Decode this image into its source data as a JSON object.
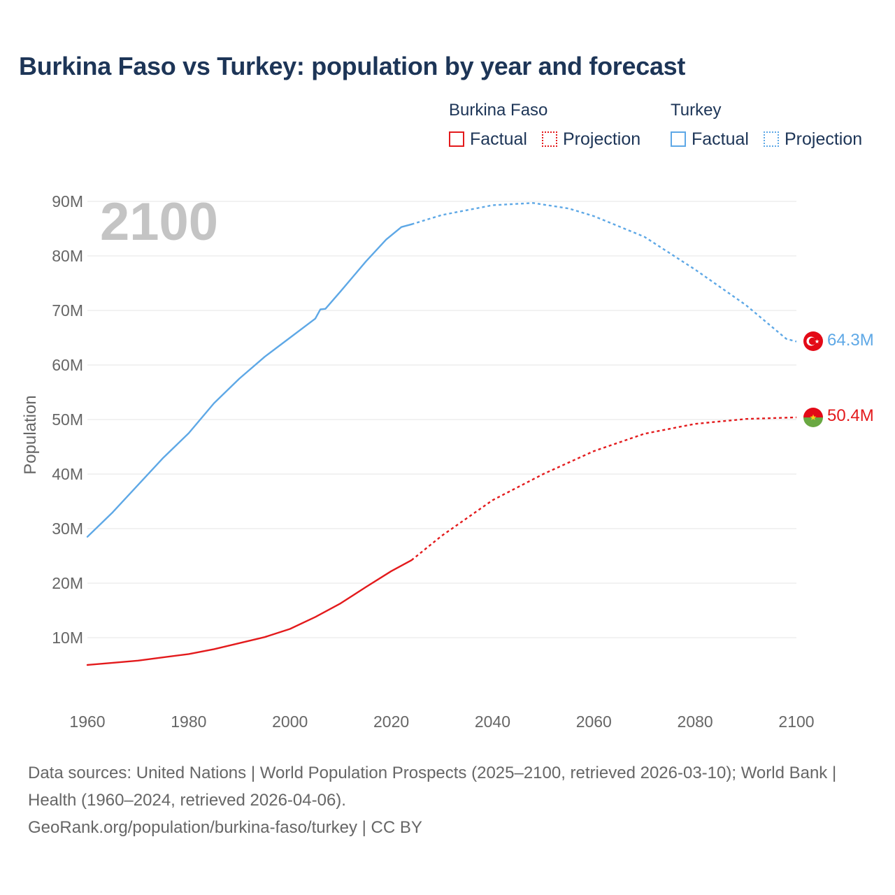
{
  "title": "Burkina Faso vs Turkey: population by year and forecast",
  "legend": {
    "groups": [
      {
        "name": "Burkina Faso",
        "color": "#e31a1c",
        "factual_label": "Factual",
        "projection_label": "Projection"
      },
      {
        "name": "Turkey",
        "color": "#5ea8e6",
        "factual_label": "Factual",
        "projection_label": "Projection"
      }
    ]
  },
  "year_watermark": "2100",
  "end_labels": {
    "turkey": "64.3M",
    "burkina": "50.4M"
  },
  "sources": {
    "line1": "Data sources: United Nations | World Population Prospects (2025–2100, retrieved 2026-03-10); World Bank | Health (1960–2024, retrieved 2026-04-06).",
    "line2": "GeoRank.org/population/burkina-faso/turkey | CC BY"
  },
  "chart_data": {
    "type": "line",
    "title": "Burkina Faso vs Turkey: population by year and forecast",
    "xlabel": "",
    "ylabel": "Population",
    "xlim": [
      1960,
      2100
    ],
    "ylim": [
      0,
      90000000
    ],
    "x_ticks": [
      "1960",
      "1980",
      "2000",
      "2020",
      "2040",
      "2060",
      "2080",
      "2100"
    ],
    "y_ticks": [
      {
        "value": 10000000,
        "label": "10M"
      },
      {
        "value": 20000000,
        "label": "20M"
      },
      {
        "value": 30000000,
        "label": "30M"
      },
      {
        "value": 40000000,
        "label": "40M"
      },
      {
        "value": 50000000,
        "label": "50M"
      },
      {
        "value": 60000000,
        "label": "60M"
      },
      {
        "value": 70000000,
        "label": "70M"
      },
      {
        "value": 80000000,
        "label": "80M"
      },
      {
        "value": 90000000,
        "label": "90M"
      }
    ],
    "series": [
      {
        "name": "Turkey",
        "color": "#5ea8e6",
        "factual": [
          [
            1960,
            28.5
          ],
          [
            1965,
            33.0
          ],
          [
            1970,
            38.0
          ],
          [
            1975,
            43.0
          ],
          [
            1980,
            47.5
          ],
          [
            1985,
            53.0
          ],
          [
            1990,
            57.5
          ],
          [
            1995,
            61.5
          ],
          [
            2000,
            65.0
          ],
          [
            2005,
            68.5
          ],
          [
            2006,
            70.2
          ],
          [
            2007,
            70.3
          ],
          [
            2010,
            73.5
          ],
          [
            2015,
            79.0
          ],
          [
            2019,
            83.0
          ],
          [
            2022,
            85.3
          ],
          [
            2024,
            85.8
          ]
        ],
        "projection": [
          [
            2024,
            85.8
          ],
          [
            2030,
            87.5
          ],
          [
            2040,
            89.3
          ],
          [
            2048,
            89.7
          ],
          [
            2055,
            88.7
          ],
          [
            2060,
            87.3
          ],
          [
            2070,
            83.5
          ],
          [
            2080,
            77.5
          ],
          [
            2090,
            71.0
          ],
          [
            2098,
            64.8
          ],
          [
            2100,
            64.3
          ]
        ],
        "final_value": "64.3M"
      },
      {
        "name": "Burkina Faso",
        "color": "#e31a1c",
        "factual": [
          [
            1960,
            5.0
          ],
          [
            1965,
            5.4
          ],
          [
            1970,
            5.8
          ],
          [
            1975,
            6.4
          ],
          [
            1980,
            7.0
          ],
          [
            1985,
            7.9
          ],
          [
            1990,
            9.0
          ],
          [
            1995,
            10.1
          ],
          [
            2000,
            11.6
          ],
          [
            2005,
            13.8
          ],
          [
            2010,
            16.3
          ],
          [
            2015,
            19.3
          ],
          [
            2020,
            22.2
          ],
          [
            2024,
            24.2
          ]
        ],
        "projection": [
          [
            2024,
            24.2
          ],
          [
            2030,
            28.7
          ],
          [
            2040,
            35.2
          ],
          [
            2050,
            40.0
          ],
          [
            2060,
            44.2
          ],
          [
            2070,
            47.4
          ],
          [
            2080,
            49.2
          ],
          [
            2090,
            50.1
          ],
          [
            2100,
            50.4
          ]
        ],
        "final_value": "50.4M"
      }
    ]
  }
}
